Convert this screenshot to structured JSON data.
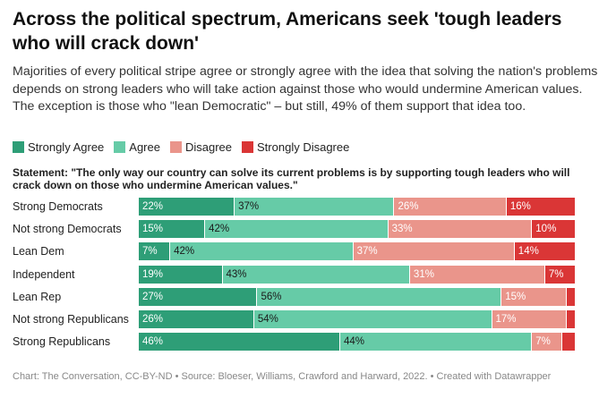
{
  "title": "Across the political spectrum, Americans seek 'tough leaders who will crack down'",
  "description": "Majorities of every political stripe agree or strongly agree with the idea that solving the nation's problems depends on strong leaders who will take action against those who would undermine American values. The exception is those who \"lean Democratic\" – but still, 49% of them support that idea too.",
  "legend": [
    {
      "label": "Strongly Agree",
      "color": "#2e9e77"
    },
    {
      "label": "Agree",
      "color": "#66cba7"
    },
    {
      "label": "Disagree",
      "color": "#ea958b"
    },
    {
      "label": "Strongly Disagree",
      "color": "#da3636"
    }
  ],
  "statement": "Statement: \"The only way our country can solve its current problems is by supporting tough leaders who will crack down on those who undermine American values.\"",
  "footer": "Chart: The Conversation, CC-BY-ND • Source: Bloeser, Williams, Crawford and Harward, 2022. • Created with Datawrapper",
  "chart_data": {
    "type": "bar",
    "orientation": "horizontal",
    "stacked": true,
    "percent_scale": true,
    "title": "Across the political spectrum, Americans seek 'tough leaders who will crack down'",
    "categories": [
      "Strong Democrats",
      "Not strong Democrats",
      "Lean Dem",
      "Independent",
      "Lean Rep",
      "Not strong Republicans",
      "Strong Republicans"
    ],
    "series": [
      {
        "name": "Strongly Agree",
        "color": "#2e9e77",
        "text_color": "#ffffff",
        "values": [
          22,
          15,
          7,
          19,
          27,
          26,
          46
        ]
      },
      {
        "name": "Agree",
        "color": "#66cba7",
        "text_color": "#1a1a1a",
        "values": [
          37,
          42,
          42,
          43,
          56,
          54,
          44
        ]
      },
      {
        "name": "Disagree",
        "color": "#ea958b",
        "text_color": "#ffffff",
        "values": [
          26,
          33,
          37,
          31,
          15,
          17,
          7
        ]
      },
      {
        "name": "Strongly Disagree",
        "color": "#da3636",
        "text_color": "#ffffff",
        "values": [
          16,
          10,
          14,
          7,
          2,
          2,
          3
        ]
      }
    ],
    "data_labels": [
      [
        "22%",
        "37%",
        "26%",
        "16%"
      ],
      [
        "15%",
        "42%",
        "33%",
        "10%"
      ],
      [
        "7%",
        "42%",
        "37%",
        "14%"
      ],
      [
        "19%",
        "43%",
        "31%",
        "7%"
      ],
      [
        "27%",
        "56%",
        "15%",
        ""
      ],
      [
        "26%",
        "54%",
        "17%",
        ""
      ],
      [
        "46%",
        "44%",
        "7%",
        ""
      ]
    ],
    "legend_position": "top",
    "grid": false
  }
}
